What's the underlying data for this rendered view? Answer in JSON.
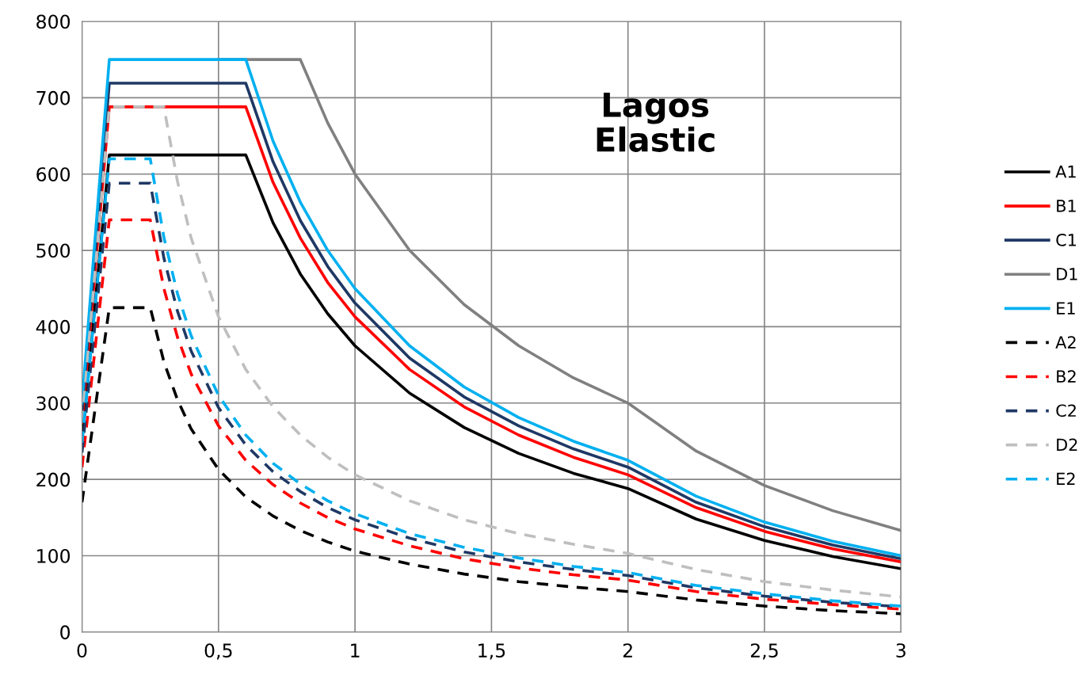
{
  "chart_data": {
    "type": "line",
    "annotations": [
      "Lagos\nElastic"
    ],
    "x": [
      0,
      0.1,
      0.25,
      0.3,
      0.35,
      0.4,
      0.5,
      0.6,
      0.7,
      0.8,
      0.9,
      1,
      1.2,
      1.4,
      1.6,
      1.8,
      2,
      2.25,
      2.5,
      2.75,
      3
    ],
    "series": [
      {
        "name": "A1",
        "color": "#000000",
        "line_style": "solid",
        "values": [
          250,
          625,
          625,
          625,
          625,
          625,
          625,
          625,
          536,
          469,
          417,
          375,
          313,
          268,
          234,
          208,
          188,
          148,
          120,
          99,
          83
        ]
      },
      {
        "name": "B1",
        "color": "#ff0000",
        "line_style": "solid",
        "values": [
          275,
          688,
          688,
          688,
          688,
          688,
          688,
          688,
          589,
          516,
          458,
          413,
          344,
          295,
          258,
          229,
          206,
          163,
          132,
          109,
          92
        ]
      },
      {
        "name": "C1",
        "color": "#1f3864",
        "line_style": "solid",
        "values": [
          288,
          719,
          719,
          719,
          719,
          719,
          719,
          719,
          616,
          539,
          479,
          431,
          359,
          308,
          270,
          240,
          216,
          170,
          138,
          114,
          96
        ]
      },
      {
        "name": "D1",
        "color": "#808080",
        "line_style": "solid",
        "values": [
          null,
          null,
          null,
          null,
          null,
          null,
          750,
          750,
          750,
          750,
          667,
          600,
          500,
          429,
          375,
          333,
          300,
          237,
          192,
          159,
          133
        ]
      },
      {
        "name": "E1",
        "color": "#00b0f0",
        "line_style": "solid",
        "values": [
          300,
          750,
          750,
          750,
          750,
          750,
          750,
          750,
          643,
          563,
          500,
          450,
          375,
          321,
          281,
          250,
          225,
          178,
          144,
          119,
          100
        ]
      },
      {
        "name": "A2",
        "color": "#000000",
        "line_style": "dashed",
        "values": [
          170,
          425,
          425,
          354,
          304,
          266,
          213,
          177,
          152,
          133,
          118,
          106,
          89,
          76,
          66,
          59,
          53,
          42,
          34,
          28,
          24
        ]
      },
      {
        "name": "B2",
        "color": "#ff0000",
        "line_style": "dashed",
        "values": [
          216,
          540,
          540,
          450,
          386,
          338,
          270,
          225,
          193,
          169,
          150,
          135,
          113,
          96,
          84,
          75,
          68,
          53,
          43,
          36,
          30
        ]
      },
      {
        "name": "C2",
        "color": "#1f3864",
        "line_style": "dashed",
        "values": [
          235,
          588,
          588,
          490,
          420,
          368,
          294,
          245,
          210,
          184,
          163,
          147,
          123,
          105,
          92,
          82,
          74,
          58,
          47,
          39,
          33
        ]
      },
      {
        "name": "D2",
        "color": "#bfbfbf",
        "line_style": "dashed",
        "values": [
          275,
          688,
          688,
          688,
          590,
          516,
          413,
          344,
          295,
          258,
          229,
          206,
          172,
          147,
          129,
          115,
          103,
          82,
          66,
          55,
          46
        ]
      },
      {
        "name": "E2",
        "color": "#00b0f0",
        "line_style": "dashed",
        "values": [
          248,
          620,
          620,
          517,
          443,
          388,
          310,
          258,
          221,
          194,
          172,
          155,
          129,
          111,
          97,
          86,
          78,
          61,
          50,
          41,
          34
        ]
      }
    ],
    "xlim": [
      0,
      3
    ],
    "xticks": [
      0,
      {
        "value": 0.5,
        "label": "0,5"
      },
      1,
      {
        "value": 1.5,
        "label": "1,5"
      },
      2,
      {
        "value": 2.5,
        "label": "2,5"
      },
      3
    ],
    "ylim": [
      0,
      800
    ],
    "yticks": [
      0,
      100,
      200,
      300,
      400,
      500,
      600,
      700,
      800
    ],
    "grid": true,
    "legend": "right",
    "marker": "none"
  }
}
